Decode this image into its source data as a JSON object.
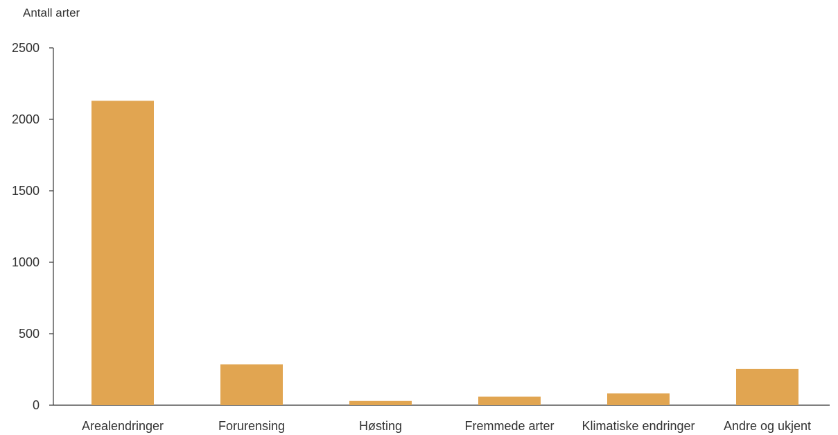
{
  "chart_data": {
    "type": "bar",
    "title": "",
    "ylabel": "Antall arter",
    "xlabel": "",
    "categories": [
      "Arealendringer",
      "Forurensing",
      "Høsting",
      "Fremmede arter",
      "Klimatiske endringer",
      "Andre og ukjent"
    ],
    "values": [
      2130,
      285,
      30,
      60,
      82,
      253
    ],
    "ylim": [
      0,
      2500
    ],
    "yticks": [
      0,
      500,
      1000,
      1500,
      2000,
      2500
    ],
    "ytick_labels": [
      "0",
      "500",
      "1000",
      "1500",
      "2000",
      "2500"
    ],
    "grid": false,
    "bar_color": "#E1A551",
    "axis_color": "#333333"
  }
}
